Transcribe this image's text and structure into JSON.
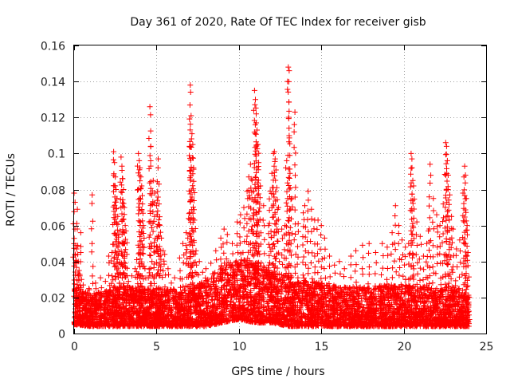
{
  "chart_data": {
    "type": "scatter",
    "title": "Day 361 of 2020, Rate Of TEC Index for receiver gisb",
    "xlabel": "GPS time / hours",
    "ylabel": "ROTI / TECUs",
    "xlim": [
      0,
      25
    ],
    "ylim": [
      0,
      0.16
    ],
    "x_ticks": [
      0,
      5,
      10,
      15,
      20,
      25
    ],
    "x_tick_labels": [
      "0",
      "5",
      "10",
      "15",
      "20",
      "25"
    ],
    "y_ticks": [
      0,
      0.02,
      0.04,
      0.06,
      0.08,
      0.1,
      0.12,
      0.14,
      0.16
    ],
    "y_tick_labels": [
      "0",
      "0.02",
      "0.04",
      "0.06",
      "0.08",
      "0.1",
      "0.12",
      "0.14",
      "0.16"
    ],
    "grid": true,
    "marker": "plus",
    "color": "#ff0000",
    "series": [
      {
        "points": [
          [
            0.0,
            0.078
          ],
          [
            0.05,
            0.058
          ],
          [
            0.1,
            0.049
          ],
          [
            0.15,
            0.047
          ],
          [
            0.2,
            0.069
          ],
          [
            0.25,
            0.04
          ],
          [
            0.3,
            0.035
          ],
          [
            0.35,
            0.032
          ],
          [
            0.4,
            0.056
          ],
          [
            0.45,
            0.03
          ],
          [
            0.55,
            0.027
          ],
          [
            0.7,
            0.023
          ],
          [
            0.9,
            0.025
          ],
          [
            1.1,
            0.077
          ],
          [
            1.3,
            0.028
          ],
          [
            1.6,
            0.031
          ],
          [
            1.9,
            0.029
          ],
          [
            2.1,
            0.043
          ],
          [
            2.3,
            0.045
          ],
          [
            2.4,
            0.101
          ],
          [
            2.45,
            0.095
          ],
          [
            2.5,
            0.087
          ],
          [
            2.55,
            0.08
          ],
          [
            2.6,
            0.075
          ],
          [
            2.65,
            0.065
          ],
          [
            2.7,
            0.055
          ],
          [
            2.75,
            0.05
          ],
          [
            2.8,
            0.033
          ],
          [
            2.85,
            0.098
          ],
          [
            2.9,
            0.093
          ],
          [
            2.95,
            0.086
          ],
          [
            3.0,
            0.08
          ],
          [
            3.05,
            0.07
          ],
          [
            3.1,
            0.06
          ],
          [
            3.15,
            0.057
          ],
          [
            3.2,
            0.044
          ],
          [
            3.3,
            0.029
          ],
          [
            3.5,
            0.032
          ],
          [
            3.7,
            0.036
          ],
          [
            3.8,
            0.041
          ],
          [
            3.9,
            0.1
          ],
          [
            3.95,
            0.096
          ],
          [
            4.0,
            0.092
          ],
          [
            4.05,
            0.087
          ],
          [
            4.1,
            0.082
          ],
          [
            4.15,
            0.072
          ],
          [
            4.2,
            0.06
          ],
          [
            4.3,
            0.036
          ],
          [
            4.5,
            0.031
          ],
          [
            4.6,
            0.126
          ],
          [
            4.65,
            0.104
          ],
          [
            4.7,
            0.077
          ],
          [
            4.8,
            0.085
          ],
          [
            4.9,
            0.078
          ],
          [
            5.0,
            0.071
          ],
          [
            5.05,
            0.066
          ],
          [
            5.1,
            0.097
          ],
          [
            5.15,
            0.083
          ],
          [
            5.2,
            0.06
          ],
          [
            5.3,
            0.053
          ],
          [
            5.4,
            0.046
          ],
          [
            5.5,
            0.044
          ],
          [
            5.7,
            0.036
          ],
          [
            5.9,
            0.028
          ],
          [
            6.1,
            0.031
          ],
          [
            6.4,
            0.042
          ],
          [
            6.6,
            0.05
          ],
          [
            6.8,
            0.056
          ],
          [
            6.9,
            0.053
          ],
          [
            7.0,
            0.104
          ],
          [
            7.05,
            0.138
          ],
          [
            7.1,
            0.121
          ],
          [
            7.15,
            0.111
          ],
          [
            7.2,
            0.105
          ],
          [
            7.25,
            0.092
          ],
          [
            7.3,
            0.063
          ],
          [
            7.4,
            0.046
          ],
          [
            7.6,
            0.04
          ],
          [
            7.8,
            0.034
          ],
          [
            8.0,
            0.036
          ],
          [
            8.3,
            0.039
          ],
          [
            8.6,
            0.046
          ],
          [
            8.9,
            0.053
          ],
          [
            9.1,
            0.058
          ],
          [
            9.3,
            0.055
          ],
          [
            9.6,
            0.05
          ],
          [
            9.9,
            0.062
          ],
          [
            10.1,
            0.066
          ],
          [
            10.3,
            0.07
          ],
          [
            10.5,
            0.079
          ],
          [
            10.6,
            0.087
          ],
          [
            10.7,
            0.094
          ],
          [
            10.8,
            0.085
          ],
          [
            10.9,
            0.079
          ],
          [
            10.95,
            0.135
          ],
          [
            11.0,
            0.13
          ],
          [
            11.05,
            0.122
          ],
          [
            11.1,
            0.113
          ],
          [
            11.15,
            0.105
          ],
          [
            11.2,
            0.095
          ],
          [
            11.3,
            0.082
          ],
          [
            11.5,
            0.071
          ],
          [
            11.8,
            0.06
          ],
          [
            11.9,
            0.079
          ],
          [
            12.0,
            0.089
          ],
          [
            12.1,
            0.1
          ],
          [
            12.15,
            0.101
          ],
          [
            12.2,
            0.097
          ],
          [
            12.3,
            0.081
          ],
          [
            12.4,
            0.07
          ],
          [
            12.6,
            0.058
          ],
          [
            12.8,
            0.06
          ],
          [
            12.9,
            0.096
          ],
          [
            13.0,
            0.148
          ],
          [
            13.05,
            0.146
          ],
          [
            13.1,
            0.089
          ],
          [
            13.2,
            0.075
          ],
          [
            13.4,
            0.123
          ],
          [
            13.6,
            0.061
          ],
          [
            13.9,
            0.067
          ],
          [
            14.0,
            0.071
          ],
          [
            14.2,
            0.079
          ],
          [
            14.4,
            0.069
          ],
          [
            14.6,
            0.063
          ],
          [
            14.8,
            0.063
          ],
          [
            15.0,
            0.06
          ],
          [
            15.2,
            0.053
          ],
          [
            15.5,
            0.043
          ],
          [
            15.8,
            0.038
          ],
          [
            16.1,
            0.04
          ],
          [
            16.4,
            0.036
          ],
          [
            16.8,
            0.043
          ],
          [
            17.1,
            0.046
          ],
          [
            17.5,
            0.049
          ],
          [
            17.9,
            0.05
          ],
          [
            18.3,
            0.045
          ],
          [
            18.7,
            0.05
          ],
          [
            19.0,
            0.048
          ],
          [
            19.3,
            0.056
          ],
          [
            19.5,
            0.071
          ],
          [
            19.7,
            0.06
          ],
          [
            19.9,
            0.052
          ],
          [
            20.1,
            0.048
          ],
          [
            20.3,
            0.05
          ],
          [
            20.45,
            0.1
          ],
          [
            20.5,
            0.097
          ],
          [
            20.55,
            0.085
          ],
          [
            20.6,
            0.082
          ],
          [
            20.8,
            0.062
          ],
          [
            21.0,
            0.054
          ],
          [
            21.2,
            0.043
          ],
          [
            21.4,
            0.05
          ],
          [
            21.5,
            0.057
          ],
          [
            21.6,
            0.094
          ],
          [
            21.8,
            0.075
          ],
          [
            22.0,
            0.066
          ],
          [
            22.2,
            0.06
          ],
          [
            22.4,
            0.072
          ],
          [
            22.55,
            0.106
          ],
          [
            22.6,
            0.104
          ],
          [
            22.65,
            0.096
          ],
          [
            22.7,
            0.088
          ],
          [
            22.8,
            0.077
          ],
          [
            22.9,
            0.065
          ],
          [
            23.0,
            0.058
          ],
          [
            23.2,
            0.047
          ],
          [
            23.4,
            0.052
          ],
          [
            23.6,
            0.078
          ],
          [
            23.7,
            0.093
          ],
          [
            23.75,
            0.088
          ],
          [
            23.8,
            0.075
          ],
          [
            23.85,
            0.06
          ],
          [
            23.9,
            0.045
          ]
        ],
        "baseline": [
          [
            0.0,
            0.005,
            0.025
          ],
          [
            1.0,
            0.004,
            0.022
          ],
          [
            2.0,
            0.004,
            0.024
          ],
          [
            3.0,
            0.004,
            0.026
          ],
          [
            4.0,
            0.004,
            0.025
          ],
          [
            5.0,
            0.004,
            0.024
          ],
          [
            6.0,
            0.004,
            0.025
          ],
          [
            7.0,
            0.004,
            0.024
          ],
          [
            8.0,
            0.004,
            0.03
          ],
          [
            9.0,
            0.006,
            0.038
          ],
          [
            10.0,
            0.008,
            0.042
          ],
          [
            11.0,
            0.006,
            0.04
          ],
          [
            12.0,
            0.006,
            0.036
          ],
          [
            13.0,
            0.004,
            0.032
          ],
          [
            14.0,
            0.004,
            0.03
          ],
          [
            15.0,
            0.004,
            0.028
          ],
          [
            16.0,
            0.004,
            0.026
          ],
          [
            17.0,
            0.004,
            0.026
          ],
          [
            18.0,
            0.004,
            0.026
          ],
          [
            19.0,
            0.004,
            0.027
          ],
          [
            20.0,
            0.004,
            0.027
          ],
          [
            21.0,
            0.004,
            0.026
          ],
          [
            22.0,
            0.004,
            0.025
          ],
          [
            23.0,
            0.004,
            0.025
          ],
          [
            24.0,
            0.004,
            0.024
          ]
        ]
      }
    ]
  }
}
